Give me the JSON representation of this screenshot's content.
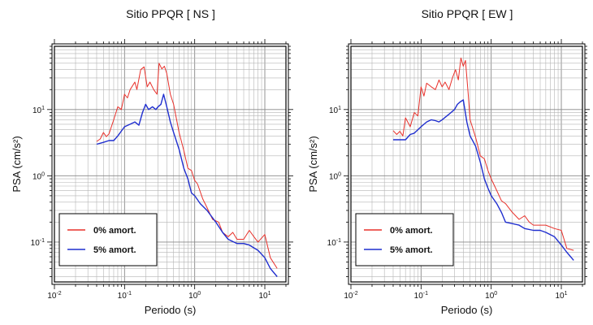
{
  "chart_data": [
    {
      "type": "line",
      "title": "Sitio PPQR [ NS ]",
      "xlabel": "Periodo (s)",
      "ylabel": "PSA (cm/s²)",
      "xscale": "log",
      "yscale": "log",
      "xlim": [
        0.01,
        20
      ],
      "ylim": [
        0.025,
        90
      ],
      "grid": true,
      "legend_position": "bottom-left",
      "x_ticks": [
        "10-2",
        "10-1",
        "100",
        "101"
      ],
      "y_ticks": [
        "10-1",
        "100",
        "101"
      ],
      "series": [
        {
          "name": "0% amort.",
          "color": "#e8302a",
          "points": [
            [
              0.04,
              3.3
            ],
            [
              0.045,
              3.6
            ],
            [
              0.05,
              4.5
            ],
            [
              0.055,
              3.9
            ],
            [
              0.06,
              4.3
            ],
            [
              0.07,
              7.0
            ],
            [
              0.08,
              11
            ],
            [
              0.09,
              10
            ],
            [
              0.1,
              17
            ],
            [
              0.11,
              15
            ],
            [
              0.12,
              20
            ],
            [
              0.14,
              26
            ],
            [
              0.15,
              20
            ],
            [
              0.17,
              40
            ],
            [
              0.19,
              44
            ],
            [
              0.21,
              22
            ],
            [
              0.23,
              26
            ],
            [
              0.26,
              20
            ],
            [
              0.29,
              17
            ],
            [
              0.31,
              50
            ],
            [
              0.34,
              41
            ],
            [
              0.37,
              45
            ],
            [
              0.4,
              35
            ],
            [
              0.45,
              17
            ],
            [
              0.5,
              12
            ],
            [
              0.6,
              4.5
            ],
            [
              0.7,
              2.4
            ],
            [
              0.8,
              1.3
            ],
            [
              0.9,
              1.2
            ],
            [
              1.0,
              0.85
            ],
            [
              1.1,
              0.75
            ],
            [
              1.3,
              0.45
            ],
            [
              1.5,
              0.33
            ],
            [
              1.8,
              0.22
            ],
            [
              2.2,
              0.2
            ],
            [
              2.5,
              0.14
            ],
            [
              3.0,
              0.12
            ],
            [
              3.5,
              0.14
            ],
            [
              4.0,
              0.11
            ],
            [
              5.0,
              0.11
            ],
            [
              6.0,
              0.15
            ],
            [
              7.0,
              0.12
            ],
            [
              8.0,
              0.1
            ],
            [
              10,
              0.13
            ],
            [
              12,
              0.058
            ],
            [
              15,
              0.04
            ]
          ]
        },
        {
          "name": "5% amort.",
          "color": "#1f2ecf",
          "points": [
            [
              0.04,
              3.0
            ],
            [
              0.05,
              3.2
            ],
            [
              0.06,
              3.4
            ],
            [
              0.07,
              3.4
            ],
            [
              0.08,
              4.0
            ],
            [
              0.1,
              5.5
            ],
            [
              0.12,
              6.0
            ],
            [
              0.14,
              6.5
            ],
            [
              0.16,
              5.8
            ],
            [
              0.18,
              9.0
            ],
            [
              0.2,
              12
            ],
            [
              0.22,
              10
            ],
            [
              0.25,
              11
            ],
            [
              0.28,
              10
            ],
            [
              0.3,
              11
            ],
            [
              0.33,
              12
            ],
            [
              0.36,
              17
            ],
            [
              0.4,
              11
            ],
            [
              0.45,
              6.5
            ],
            [
              0.5,
              4.5
            ],
            [
              0.6,
              2.5
            ],
            [
              0.7,
              1.3
            ],
            [
              0.8,
              0.9
            ],
            [
              0.9,
              0.55
            ],
            [
              1.0,
              0.5
            ],
            [
              1.2,
              0.38
            ],
            [
              1.5,
              0.3
            ],
            [
              2.0,
              0.2
            ],
            [
              2.5,
              0.14
            ],
            [
              3.0,
              0.11
            ],
            [
              4.0,
              0.095
            ],
            [
              5.0,
              0.095
            ],
            [
              6.0,
              0.09
            ],
            [
              8.0,
              0.075
            ],
            [
              10,
              0.058
            ],
            [
              12,
              0.04
            ],
            [
              15,
              0.03
            ]
          ]
        }
      ]
    },
    {
      "type": "line",
      "title": "Sitio PPQR [ EW ]",
      "xlabel": "Periodo (s)",
      "ylabel": "PSA (cm/s²)",
      "xscale": "log",
      "yscale": "log",
      "xlim": [
        0.01,
        20
      ],
      "ylim": [
        0.025,
        90
      ],
      "grid": true,
      "legend_position": "bottom-left",
      "x_ticks": [
        "10-2",
        "10-1",
        "100",
        "101"
      ],
      "y_ticks": [
        "10-1",
        "100",
        "101"
      ],
      "series": [
        {
          "name": "0% amort.",
          "color": "#e8302a",
          "points": [
            [
              0.04,
              4.8
            ],
            [
              0.045,
              4.2
            ],
            [
              0.05,
              4.7
            ],
            [
              0.055,
              4.0
            ],
            [
              0.06,
              7.5
            ],
            [
              0.07,
              5.5
            ],
            [
              0.08,
              9.0
            ],
            [
              0.09,
              8.0
            ],
            [
              0.1,
              22
            ],
            [
              0.11,
              16
            ],
            [
              0.12,
              25
            ],
            [
              0.14,
              22
            ],
            [
              0.16,
              20
            ],
            [
              0.18,
              28
            ],
            [
              0.2,
              22
            ],
            [
              0.22,
              26
            ],
            [
              0.25,
              20
            ],
            [
              0.28,
              30
            ],
            [
              0.31,
              40
            ],
            [
              0.34,
              28
            ],
            [
              0.37,
              60
            ],
            [
              0.4,
              45
            ],
            [
              0.43,
              55
            ],
            [
              0.47,
              17
            ],
            [
              0.5,
              7.0
            ],
            [
              0.6,
              3.8
            ],
            [
              0.7,
              2.0
            ],
            [
              0.8,
              1.8
            ],
            [
              0.9,
              1.2
            ],
            [
              1.0,
              0.9
            ],
            [
              1.2,
              0.6
            ],
            [
              1.4,
              0.42
            ],
            [
              1.6,
              0.38
            ],
            [
              2.0,
              0.28
            ],
            [
              2.5,
              0.22
            ],
            [
              3.0,
              0.25
            ],
            [
              3.5,
              0.2
            ],
            [
              4.0,
              0.18
            ],
            [
              6.0,
              0.18
            ],
            [
              8.0,
              0.16
            ],
            [
              10,
              0.15
            ],
            [
              12,
              0.08
            ],
            [
              15,
              0.075
            ]
          ]
        },
        {
          "name": "5% amort.",
          "color": "#1f2ecf",
          "points": [
            [
              0.04,
              3.5
            ],
            [
              0.05,
              3.5
            ],
            [
              0.06,
              3.5
            ],
            [
              0.07,
              4.2
            ],
            [
              0.08,
              4.4
            ],
            [
              0.1,
              5.5
            ],
            [
              0.12,
              6.5
            ],
            [
              0.14,
              7.0
            ],
            [
              0.16,
              6.8
            ],
            [
              0.18,
              6.5
            ],
            [
              0.2,
              7.0
            ],
            [
              0.25,
              8.5
            ],
            [
              0.3,
              10
            ],
            [
              0.33,
              12
            ],
            [
              0.36,
              13
            ],
            [
              0.4,
              14
            ],
            [
              0.45,
              6.5
            ],
            [
              0.5,
              4.0
            ],
            [
              0.6,
              2.8
            ],
            [
              0.7,
              1.6
            ],
            [
              0.8,
              0.9
            ],
            [
              0.9,
              0.65
            ],
            [
              1.0,
              0.5
            ],
            [
              1.2,
              0.38
            ],
            [
              1.4,
              0.28
            ],
            [
              1.6,
              0.2
            ],
            [
              2.0,
              0.19
            ],
            [
              2.5,
              0.18
            ],
            [
              3.0,
              0.16
            ],
            [
              4.0,
              0.15
            ],
            [
              5.0,
              0.15
            ],
            [
              6.0,
              0.14
            ],
            [
              8.0,
              0.12
            ],
            [
              10,
              0.09
            ],
            [
              12,
              0.07
            ],
            [
              15,
              0.053
            ]
          ]
        }
      ]
    }
  ]
}
